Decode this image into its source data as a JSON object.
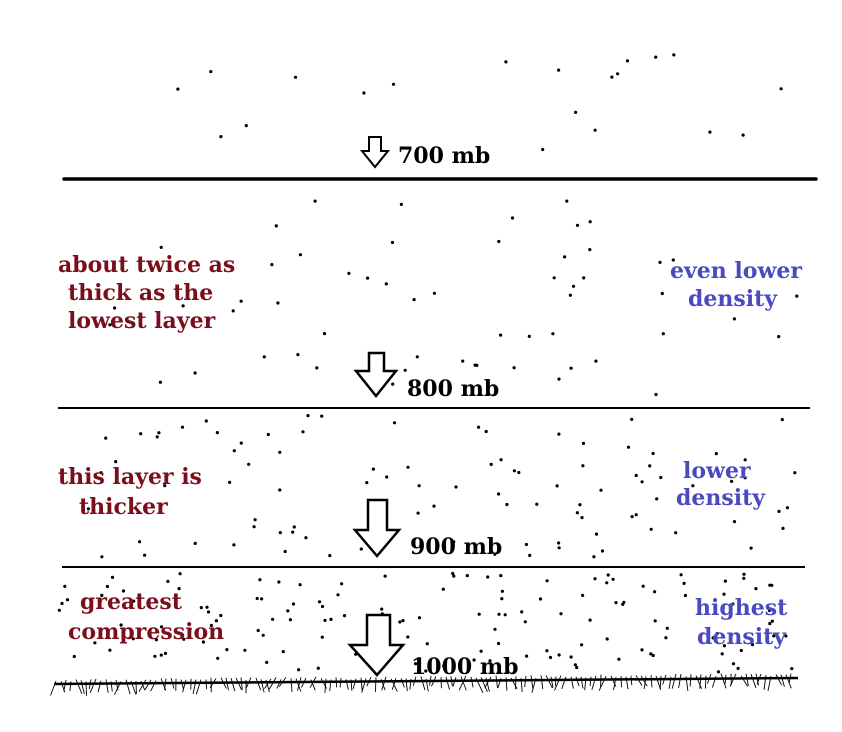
{
  "colors": {
    "left_text": "#7a0f1c",
    "right_text": "#4a4ac0",
    "line": "#000000",
    "dot": "#000000",
    "arrow_fill": "#ffffff"
  },
  "pressure_levels": [
    {
      "label": "700 mb"
    },
    {
      "label": "800 mb"
    },
    {
      "label": "900 mb"
    },
    {
      "label": "1000 mb"
    }
  ],
  "layers": [
    {
      "left_lines": [
        "about twice as",
        "thick as the",
        "lowest layer"
      ],
      "right_lines": [
        "even lower",
        "density"
      ]
    },
    {
      "left_lines": [
        "this layer is",
        "thicker"
      ],
      "right_lines": [
        "lower",
        "density"
      ]
    },
    {
      "left_lines": [
        "greatest",
        "compression"
      ],
      "right_lines": [
        "highest",
        "density"
      ]
    }
  ]
}
